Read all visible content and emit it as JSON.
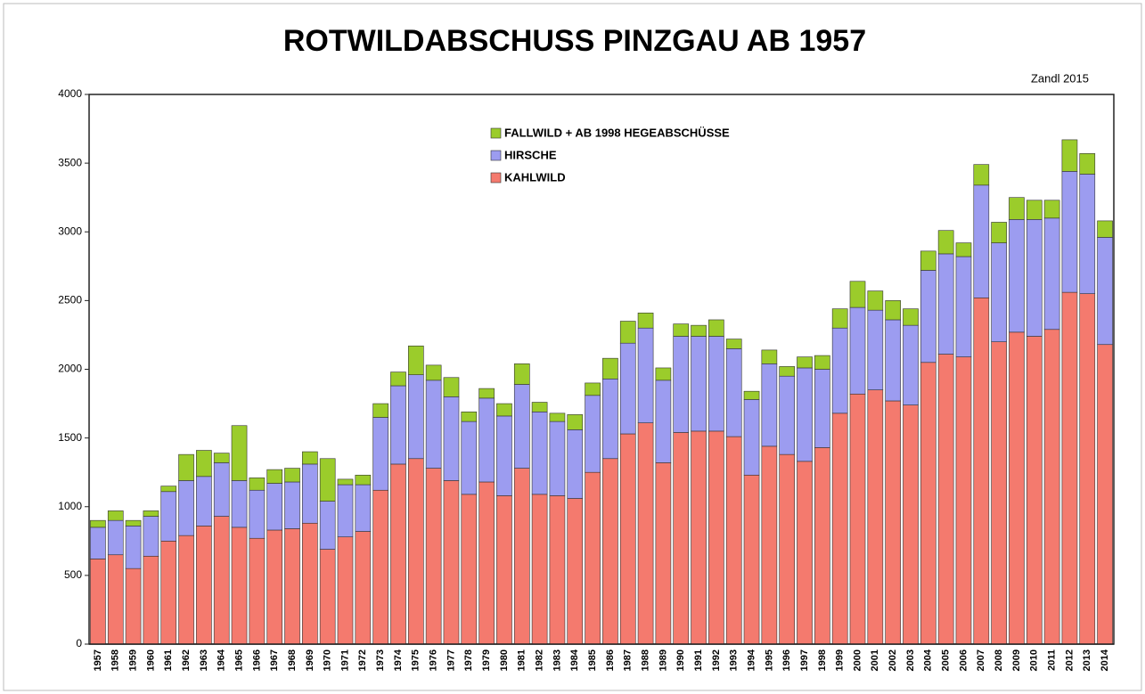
{
  "chart_data": {
    "type": "stacked-bar",
    "title": "ROTWILDABSCHUSS PINZGAU AB 1957",
    "annotation": "Zandl 2015",
    "categories": [
      "1957",
      "1958",
      "1959",
      "1960",
      "1961",
      "1962",
      "1963",
      "1964",
      "1965",
      "1966",
      "1967",
      "1968",
      "1969",
      "1970",
      "1971",
      "1972",
      "1973",
      "1974",
      "1975",
      "1976",
      "1977",
      "1978",
      "1979",
      "1980",
      "1981",
      "1982",
      "1983",
      "1984",
      "1985",
      "1986",
      "1987",
      "1988",
      "1989",
      "1990",
      "1991",
      "1992",
      "1993",
      "1994",
      "1995",
      "1996",
      "1997",
      "1998",
      "1999",
      "2000",
      "2001",
      "2002",
      "2003",
      "2004",
      "2005",
      "2006",
      "2007",
      "2008",
      "2009",
      "2010",
      "2011",
      "2012",
      "2013",
      "2014"
    ],
    "series": [
      {
        "name": "KAHLWILD",
        "color": "#f47a6e",
        "values": [
          620,
          650,
          550,
          640,
          750,
          790,
          860,
          930,
          850,
          770,
          830,
          840,
          880,
          690,
          780,
          820,
          1120,
          1310,
          1350,
          1280,
          1190,
          1090,
          1180,
          1080,
          1280,
          1090,
          1080,
          1060,
          1250,
          1350,
          1530,
          1610,
          1320,
          1540,
          1550,
          1550,
          1510,
          1230,
          1440,
          1380,
          1330,
          1430,
          1680,
          1820,
          1850,
          1770,
          1740,
          2050,
          2110,
          2090,
          2520,
          2200,
          2270,
          2240,
          2290,
          2560,
          2550,
          2180
        ]
      },
      {
        "name": "HIRSCHE",
        "color": "#9c9cf0",
        "values": [
          230,
          250,
          310,
          290,
          360,
          400,
          360,
          390,
          340,
          350,
          340,
          340,
          430,
          350,
          380,
          340,
          530,
          570,
          610,
          640,
          610,
          530,
          610,
          580,
          610,
          600,
          540,
          500,
          560,
          580,
          660,
          690,
          600,
          700,
          690,
          690,
          640,
          550,
          600,
          570,
          680,
          570,
          620,
          630,
          580,
          590,
          580,
          670,
          730,
          730,
          820,
          720,
          820,
          850,
          810,
          880,
          870,
          780
        ]
      },
      {
        "name": "FALLWILD + AB 1998 HEGEABSCHÜSSE",
        "color": "#9bcc2b",
        "values": [
          50,
          70,
          40,
          40,
          40,
          190,
          190,
          70,
          400,
          90,
          100,
          100,
          90,
          310,
          40,
          70,
          100,
          100,
          210,
          110,
          140,
          70,
          70,
          90,
          150,
          70,
          60,
          110,
          90,
          150,
          160,
          110,
          90,
          90,
          80,
          120,
          70,
          60,
          100,
          70,
          80,
          100,
          140,
          190,
          140,
          140,
          120,
          140,
          170,
          100,
          150,
          150,
          160,
          140,
          130,
          230,
          150,
          120
        ]
      }
    ],
    "ylim": [
      0,
      4000
    ],
    "yticks": [
      0,
      500,
      1000,
      1500,
      2000,
      2500,
      3000,
      3500,
      4000
    ]
  }
}
